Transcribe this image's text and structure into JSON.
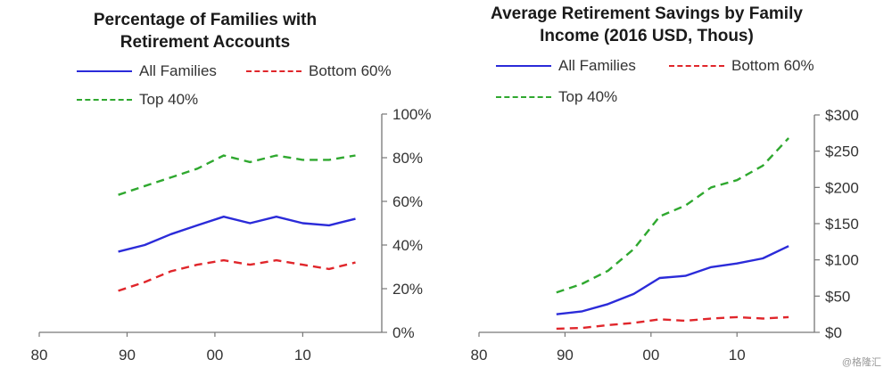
{
  "colors": {
    "all_families": "#2b2bd9",
    "bottom_60": "#e0262b",
    "top_40": "#2fa82f",
    "axis": "#777777"
  },
  "watermark": "@格隆汇",
  "chart_data": [
    {
      "type": "line",
      "title_line1": "Percentage of Families with",
      "title_line2": "Retirement Accounts",
      "x_tick_labels": [
        {
          "value": 1980,
          "label": "80"
        },
        {
          "value": 1990,
          "label": "90"
        },
        {
          "value": 2000,
          "label": "00"
        },
        {
          "value": 2010,
          "label": "10"
        }
      ],
      "xlim": [
        1980,
        2019
      ],
      "ylim": [
        0,
        100
      ],
      "y_ticks": [
        0,
        20,
        40,
        60,
        80,
        100
      ],
      "y_tick_labels": [
        "0%",
        "20%",
        "40%",
        "60%",
        "80%",
        "100%"
      ],
      "y_axis_side": "right",
      "x": [
        1989,
        1992,
        1995,
        1998,
        2001,
        2004,
        2007,
        2010,
        2013,
        2016
      ],
      "series": [
        {
          "name": "All Families",
          "style": "solid",
          "values": [
            37,
            40,
            45,
            49,
            53,
            50,
            53,
            50,
            49,
            52
          ]
        },
        {
          "name": "Bottom 60%",
          "style": "dashed",
          "values": [
            19,
            23,
            28,
            31,
            33,
            31,
            33,
            31,
            29,
            32
          ]
        },
        {
          "name": "Top 40%",
          "style": "dashed",
          "values": [
            63,
            67,
            71,
            75,
            81,
            78,
            81,
            79,
            79,
            81
          ]
        }
      ],
      "legend": [
        "All Families",
        "Bottom 60%",
        "Top 40%"
      ]
    },
    {
      "type": "line",
      "title_line1": "Average Retirement Savings by Family",
      "title_line2": "Income (2016 USD, Thous)",
      "x_tick_labels": [
        {
          "value": 1980,
          "label": "80"
        },
        {
          "value": 1990,
          "label": "90"
        },
        {
          "value": 2000,
          "label": "00"
        },
        {
          "value": 2010,
          "label": "10"
        }
      ],
      "xlim": [
        1980,
        2019
      ],
      "ylim": [
        0,
        300
      ],
      "y_ticks": [
        0,
        50,
        100,
        150,
        200,
        250,
        300
      ],
      "y_tick_labels": [
        "$0",
        "$50",
        "$100",
        "$150",
        "$200",
        "$250",
        "$300"
      ],
      "y_axis_side": "right",
      "x": [
        1989,
        1992,
        1995,
        1998,
        2001,
        2004,
        2007,
        2010,
        2013,
        2016
      ],
      "series": [
        {
          "name": "All Families",
          "style": "solid",
          "values": [
            25,
            29,
            39,
            53,
            75,
            78,
            90,
            95,
            102,
            119
          ]
        },
        {
          "name": "Bottom 60%",
          "style": "dashed",
          "values": [
            5,
            6,
            10,
            13,
            18,
            16,
            19,
            21,
            19,
            21
          ]
        },
        {
          "name": "Top 40%",
          "style": "dashed",
          "values": [
            55,
            67,
            85,
            115,
            160,
            175,
            200,
            210,
            230,
            268
          ]
        }
      ],
      "legend": [
        "All Families",
        "Bottom 60%",
        "Top 40%"
      ]
    }
  ]
}
